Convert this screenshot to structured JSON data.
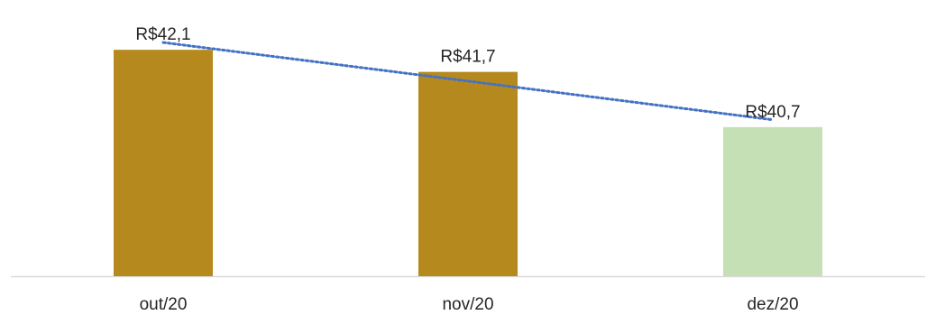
{
  "chart_data": {
    "type": "bar",
    "categories": [
      "out/20",
      "nov/20",
      "dez/20"
    ],
    "values": [
      42.1,
      41.7,
      40.7
    ],
    "data_labels": [
      "R$42,1",
      "R$41,7",
      "R$40,7"
    ],
    "bar_colors": [
      "#B5891E",
      "#B5891E",
      "#C5E0B4"
    ],
    "trendline": {
      "style": "dotted",
      "color": "#4472C4",
      "kind": "linear"
    },
    "title": "",
    "xlabel": "",
    "ylabel": "",
    "ylim": [
      38.0,
      42.25
    ],
    "grid": false,
    "legend": "none",
    "axis_color": "#D9D9D9"
  }
}
